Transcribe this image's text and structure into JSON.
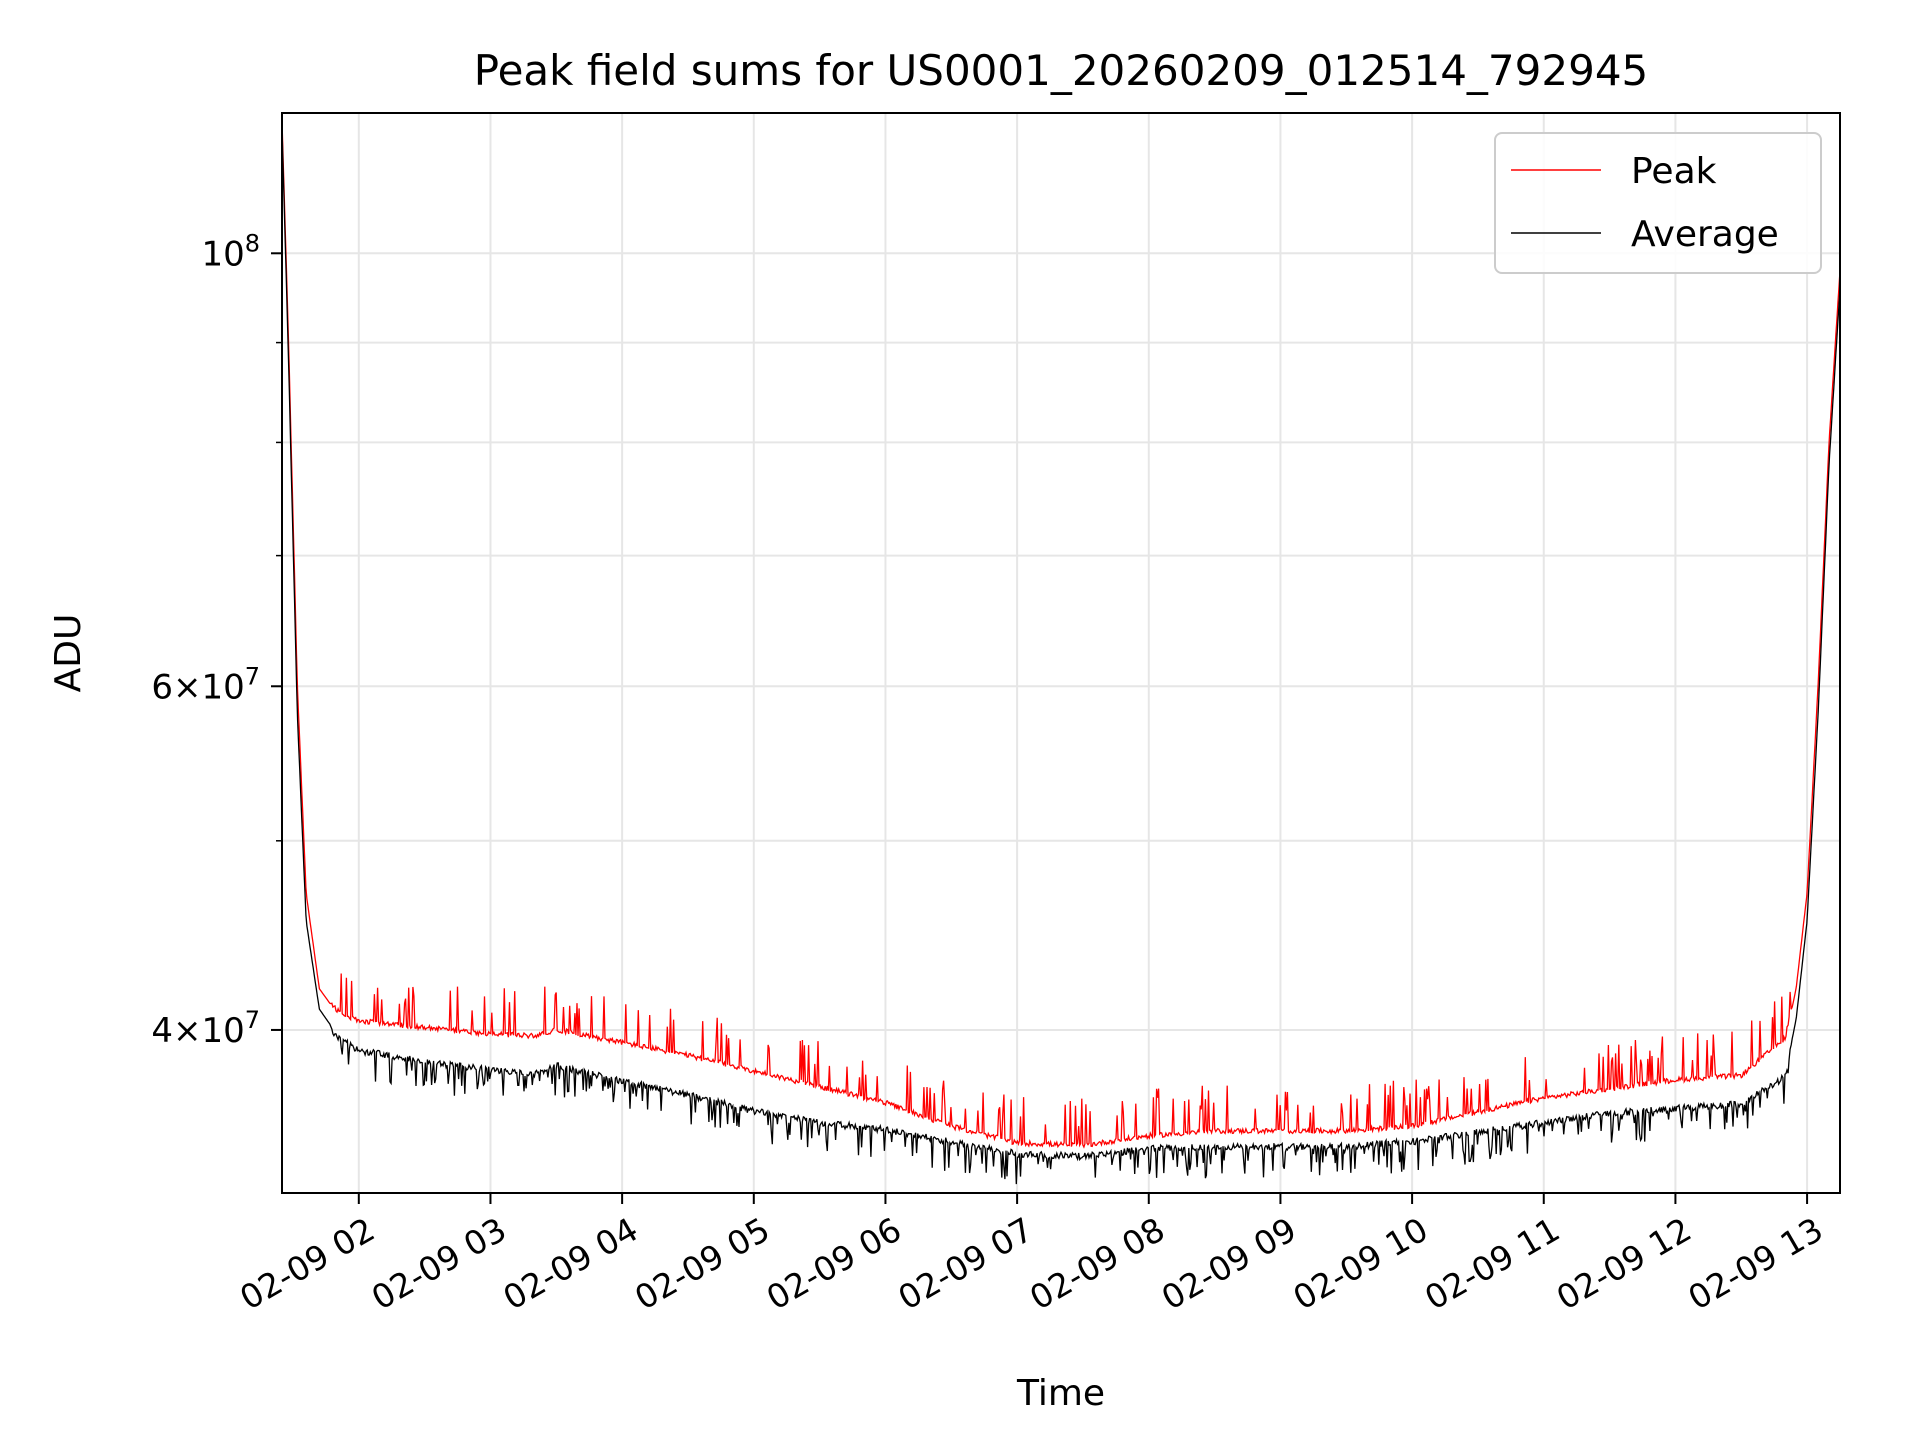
{
  "chart_data": {
    "type": "line",
    "title": "Peak field sums for US0001_20260209_012514_792945",
    "xlabel": "Time",
    "ylabel": "ADU",
    "x_start": "02-09 01:25",
    "x_end": "02-09 13:15",
    "x_ticks": [
      "02-09 02",
      "02-09 03",
      "02-09 04",
      "02-09 05",
      "02-09 06",
      "02-09 07",
      "02-09 08",
      "02-09 09",
      "02-09 10",
      "02-09 11",
      "02-09 12",
      "02-09 13"
    ],
    "yscale": "log",
    "ylim": [
      33000000,
      118000000
    ],
    "y_ticks": [
      {
        "value": 100000000,
        "base": "10",
        "exp": "8",
        "mant": ""
      },
      {
        "value": 60000000,
        "base": "10",
        "exp": "7",
        "mant": "6"
      },
      {
        "value": 40000000,
        "base": "10",
        "exp": "7",
        "mant": "4"
      }
    ],
    "y_minor_ticks": [
      90000000,
      80000000,
      70000000,
      50000000
    ],
    "grid": true,
    "legend_position": "top-right",
    "series": [
      {
        "name": "Peak",
        "color": "#ff0000",
        "noise": "upward-spikes",
        "points": [
          [
            "02-09 01:25",
            117000000
          ],
          [
            "02-09 01:28",
            90000000
          ],
          [
            "02-09 01:32",
            60000000
          ],
          [
            "02-09 01:36",
            47000000
          ],
          [
            "02-09 01:42",
            42000000
          ],
          [
            "02-09 01:50",
            40800000
          ],
          [
            "02-09 02:00",
            40300000
          ],
          [
            "02-09 02:30",
            40000000
          ],
          [
            "02-09 03:00",
            39700000
          ],
          [
            "02-09 03:20",
            39600000
          ],
          [
            "02-09 03:30",
            39900000
          ],
          [
            "02-09 04:00",
            39300000
          ],
          [
            "02-09 04:30",
            38700000
          ],
          [
            "02-09 05:00",
            38000000
          ],
          [
            "02-09 05:30",
            37300000
          ],
          [
            "02-09 06:00",
            36600000
          ],
          [
            "02-09 06:30",
            35600000
          ],
          [
            "02-09 07:00",
            34900000
          ],
          [
            "02-09 07:30",
            34800000
          ],
          [
            "02-09 08:00",
            35200000
          ],
          [
            "02-09 08:30",
            35400000
          ],
          [
            "02-09 09:00",
            35400000
          ],
          [
            "02-09 09:30",
            35400000
          ],
          [
            "02-09 10:00",
            35600000
          ],
          [
            "02-09 10:30",
            36200000
          ],
          [
            "02-09 11:00",
            36800000
          ],
          [
            "02-09 11:30",
            37200000
          ],
          [
            "02-09 12:00",
            37600000
          ],
          [
            "02-09 12:30",
            37800000
          ],
          [
            "02-09 12:50",
            39500000
          ],
          [
            "02-09 12:55",
            42000000
          ],
          [
            "02-09 13:00",
            47000000
          ],
          [
            "02-09 13:05",
            60000000
          ],
          [
            "02-09 13:10",
            80000000
          ],
          [
            "02-09 13:15",
            98000000
          ]
        ]
      },
      {
        "name": "Average",
        "color": "#000000",
        "noise": "downward-dips",
        "points": [
          [
            "02-09 01:25",
            116000000
          ],
          [
            "02-09 01:28",
            88000000
          ],
          [
            "02-09 01:32",
            58000000
          ],
          [
            "02-09 01:36",
            45500000
          ],
          [
            "02-09 01:42",
            41000000
          ],
          [
            "02-09 01:50",
            39800000
          ],
          [
            "02-09 02:00",
            39200000
          ],
          [
            "02-09 02:30",
            38700000
          ],
          [
            "02-09 03:00",
            38300000
          ],
          [
            "02-09 03:20",
            38100000
          ],
          [
            "02-09 03:30",
            38500000
          ],
          [
            "02-09 04:00",
            37800000
          ],
          [
            "02-09 04:30",
            37200000
          ],
          [
            "02-09 05:00",
            36500000
          ],
          [
            "02-09 05:30",
            36000000
          ],
          [
            "02-09 06:00",
            35700000
          ],
          [
            "02-09 06:30",
            35200000
          ],
          [
            "02-09 07:00",
            34700000
          ],
          [
            "02-09 07:30",
            34600000
          ],
          [
            "02-09 08:00",
            34900000
          ],
          [
            "02-09 08:30",
            35000000
          ],
          [
            "02-09 09:00",
            35000000
          ],
          [
            "02-09 09:30",
            35000000
          ],
          [
            "02-09 10:00",
            35200000
          ],
          [
            "02-09 10:30",
            35600000
          ],
          [
            "02-09 11:00",
            36000000
          ],
          [
            "02-09 11:30",
            36400000
          ],
          [
            "02-09 12:00",
            36600000
          ],
          [
            "02-09 12:30",
            36800000
          ],
          [
            "02-09 12:50",
            38000000
          ],
          [
            "02-09 12:55",
            40500000
          ],
          [
            "02-09 13:00",
            45500000
          ],
          [
            "02-09 13:05",
            58000000
          ],
          [
            "02-09 13:10",
            78000000
          ],
          [
            "02-09 13:15",
            96000000
          ]
        ]
      }
    ]
  }
}
